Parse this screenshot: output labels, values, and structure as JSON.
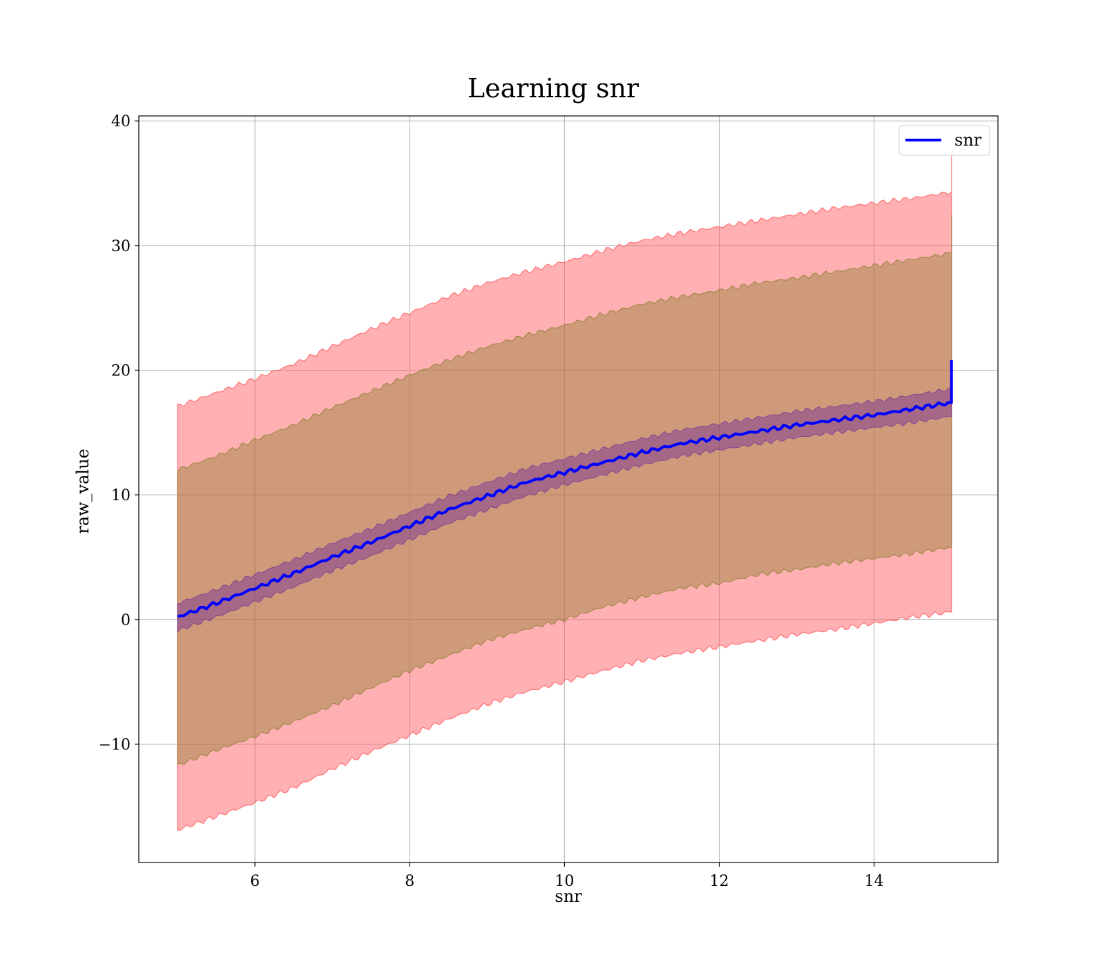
{
  "chart_data": {
    "type": "line",
    "title": "Learning snr",
    "xlabel": "snr",
    "ylabel": "raw_value",
    "xlim": [
      4.5,
      15.6
    ],
    "ylim": [
      -19.5,
      40.4
    ],
    "xticks": [
      6,
      8,
      10,
      12,
      14
    ],
    "yticks": [
      -10,
      0,
      10,
      20,
      30,
      40
    ],
    "xtick_labels": [
      "6",
      "8",
      "10",
      "12",
      "14"
    ],
    "ytick_labels": [
      "−10",
      "0",
      "10",
      "20",
      "30",
      "40"
    ],
    "grid": true,
    "legend": {
      "position": "top-right",
      "entries": [
        "snr"
      ]
    },
    "colors": {
      "line": "#0000ff",
      "band_outer": "#ff5a5f",
      "band_middle": "#8b7d2e",
      "band_inner": "#6a1f9c"
    },
    "series": [
      {
        "name": "snr",
        "x": [
          5.0,
          5.5,
          6.0,
          6.5,
          7.0,
          7.5,
          8.0,
          8.5,
          9.0,
          9.5,
          10.0,
          10.5,
          11.0,
          11.5,
          12.0,
          12.5,
          13.0,
          13.5,
          14.0,
          14.5,
          15.0
        ],
        "y": [
          0.2,
          1.3,
          2.5,
          3.7,
          5.0,
          6.2,
          7.5,
          8.8,
          9.9,
          11.0,
          11.8,
          12.6,
          13.4,
          14.1,
          14.6,
          15.1,
          15.6,
          16.0,
          16.4,
          16.9,
          17.4
        ],
        "band_inner": {
          "lower": [
            -0.9,
            0.2,
            1.4,
            2.6,
            3.9,
            5.1,
            6.4,
            7.7,
            8.8,
            9.9,
            10.8,
            11.6,
            12.4,
            13.1,
            13.6,
            14.1,
            14.6,
            15.0,
            15.4,
            15.8,
            16.3
          ],
          "upper": [
            1.3,
            2.4,
            3.6,
            4.8,
            6.1,
            7.3,
            8.6,
            9.9,
            11.0,
            12.1,
            12.9,
            13.7,
            14.5,
            15.2,
            15.7,
            16.2,
            16.7,
            17.1,
            17.5,
            18.0,
            18.5
          ]
        },
        "band_middle": {
          "lower": [
            -11.7,
            -10.5,
            -9.4,
            -8.2,
            -6.9,
            -5.5,
            -4.1,
            -2.9,
            -1.7,
            -0.8,
            0.0,
            1.0,
            1.8,
            2.5,
            2.9,
            3.6,
            4.0,
            4.5,
            4.9,
            5.3,
            5.8
          ],
          "upper": [
            12.0,
            13.1,
            14.4,
            15.6,
            17.0,
            18.3,
            19.6,
            20.8,
            21.9,
            22.8,
            23.6,
            24.5,
            25.3,
            25.9,
            26.4,
            27.0,
            27.4,
            27.9,
            28.4,
            28.9,
            29.4
          ]
        },
        "band_outer": {
          "lower": [
            -16.9,
            -15.8,
            -14.7,
            -13.5,
            -12.0,
            -10.6,
            -9.3,
            -8.0,
            -6.8,
            -5.8,
            -5.0,
            -4.1,
            -3.3,
            -2.7,
            -2.2,
            -1.7,
            -1.2,
            -0.8,
            -0.3,
            0.2,
            0.6
          ],
          "upper": [
            17.1,
            18.2,
            19.3,
            20.5,
            21.9,
            23.3,
            24.6,
            25.9,
            27.0,
            27.9,
            28.7,
            29.6,
            30.4,
            31.0,
            31.5,
            32.0,
            32.5,
            33.0,
            33.4,
            33.8,
            34.3
          ]
        }
      }
    ],
    "end_spike": {
      "x": 15.0,
      "line_top": 20.8,
      "outer_top": 37.5
    }
  }
}
